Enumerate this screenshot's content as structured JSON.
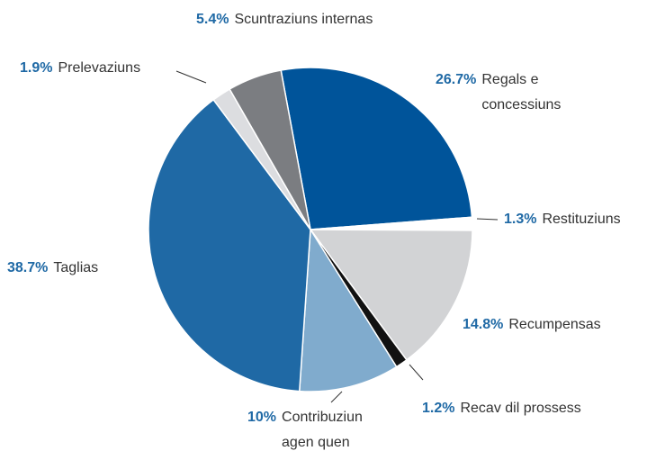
{
  "chart_data": {
    "type": "pie",
    "categories": [
      "Regals e concessiuns",
      "Restituziuns",
      "Recumpensas",
      "Recav dil prossess",
      "Contribuziun agen quen",
      "Taglias",
      "Prelevaziuns",
      "Scuntraziuns internas"
    ],
    "values": [
      26.7,
      1.3,
      14.8,
      1.2,
      10,
      38.7,
      1.9,
      5.4
    ],
    "value_labels": [
      "26.7%",
      "1.3%",
      "14.8%",
      "1.2%",
      "10%",
      "38.7%",
      "1.9%",
      "5.4%"
    ],
    "colors": [
      "#00549a",
      "#ffffff",
      "#d2d3d5",
      "#111111",
      "#80abcd",
      "#1f69a5",
      "#dcdde0",
      "#7b7d81"
    ]
  }
}
